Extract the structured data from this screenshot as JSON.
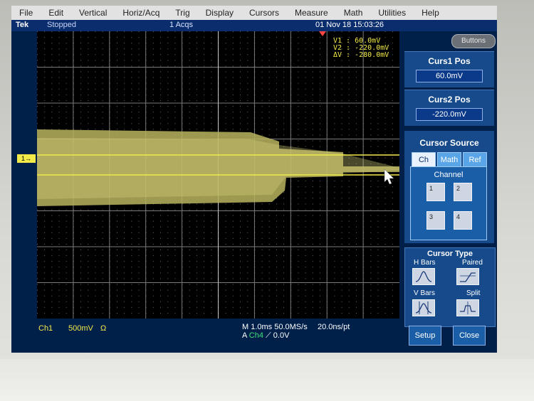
{
  "menu": [
    "File",
    "Edit",
    "Vertical",
    "Horiz/Acq",
    "Trig",
    "Display",
    "Cursors",
    "Measure",
    "Math",
    "Utilities",
    "Help"
  ],
  "status": {
    "brand": "Tek",
    "acq_state": "Stopped",
    "acq_count": "1 Acqs",
    "datetime": "01 Nov 18 15:03:26"
  },
  "readout": {
    "v1": "V1 :   60.0mV",
    "v2": "V2 :  -220.0mV",
    "dv": "ΔV :  -280.0mV"
  },
  "ch1_marker": "1→",
  "bottom": {
    "channel": "Ch1",
    "scale": "500mV",
    "coupling": "Ω",
    "timebase": "M 1.0ms 50.0MS/s",
    "trigger_prefix": "A",
    "trigger_source": "Ch4",
    "trigger_level": "⟋ 0.0V",
    "resolution": "20.0ns/pt"
  },
  "panel": {
    "buttons_label": "Buttons",
    "curs1_title": "Curs1 Pos",
    "curs1_value": "60.0mV",
    "curs2_title": "Curs2 Pos",
    "curs2_value": "-220.0mV",
    "source_title": "Cursor Source",
    "tabs": [
      "Ch",
      "Math",
      "Ref"
    ],
    "channel_label": "Channel",
    "ch_buttons": [
      "1",
      "2",
      "3",
      "4"
    ],
    "cursor_type_title": "Cursor Type",
    "hbars": "H Bars",
    "paired": "Paired",
    "vbars": "V Bars",
    "split": "Split",
    "setup": "Setup",
    "close": "Close"
  },
  "colors": {
    "screen_bg": "#00204a",
    "trace": "#f2ea48",
    "panel": "#164a8a",
    "trigger_source": "#3fe07a"
  }
}
